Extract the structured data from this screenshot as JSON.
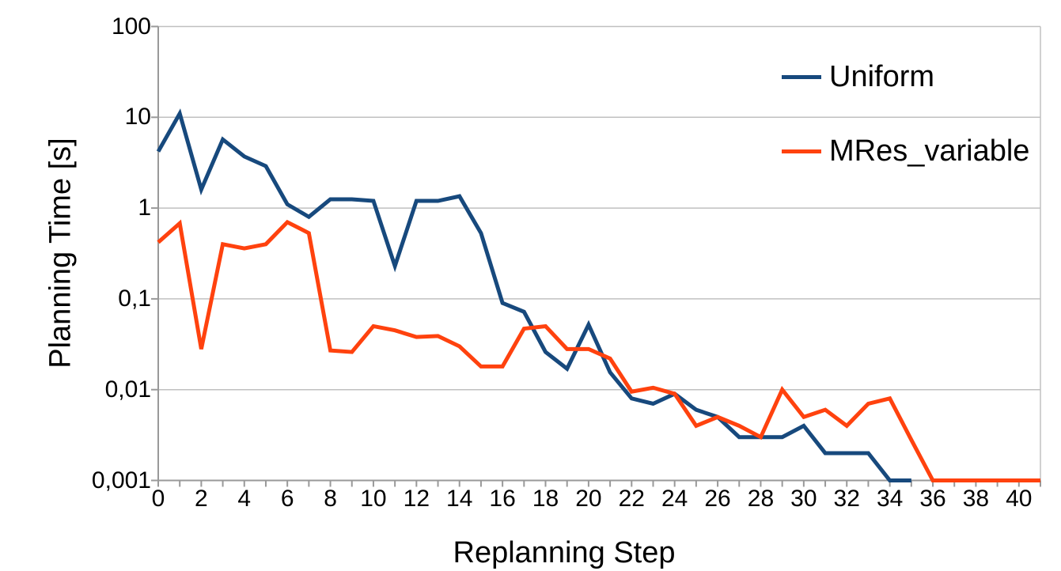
{
  "chart_data": {
    "type": "line",
    "title": "",
    "xlabel": "Replanning Step",
    "ylabel": "Planning Time [s]",
    "y_scale": "log",
    "ylim": [
      0.001,
      100
    ],
    "xlim": [
      0,
      41
    ],
    "grid": "horizontal-decades",
    "legend_position": "top-right-inside",
    "y_tick_values": [
      100,
      10,
      1,
      0.1,
      0.01,
      0.001
    ],
    "y_tick_labels": [
      "100",
      "10",
      "1",
      "0,1",
      "0,01",
      "0,001"
    ],
    "x_tick_values": [
      0,
      2,
      4,
      6,
      8,
      10,
      12,
      14,
      16,
      18,
      20,
      22,
      24,
      26,
      28,
      30,
      32,
      34,
      36,
      38,
      40
    ],
    "x_tick_labels": [
      "0",
      "2",
      "4",
      "6",
      "8",
      "10",
      "12",
      "14",
      "16",
      "18",
      "20",
      "22",
      "24",
      "26",
      "28",
      "30",
      "32",
      "34",
      "36",
      "38",
      "40"
    ],
    "x_minor_tick_every": 1,
    "series": [
      {
        "name": "Uniform",
        "color": "#17497D",
        "x_start": 0,
        "values": [
          4.2,
          11,
          1.6,
          5.7,
          3.7,
          2.9,
          1.1,
          0.8,
          1.25,
          1.25,
          1.2,
          0.23,
          1.2,
          1.2,
          1.35,
          0.53,
          0.09,
          0.072,
          0.026,
          0.017,
          0.052,
          0.0155,
          0.008,
          0.007,
          0.009,
          0.006,
          0.005,
          0.003,
          0.003,
          0.003,
          0.004,
          0.002,
          0.002,
          0.002,
          0.001,
          0.001
        ]
      },
      {
        "name": "MRes_variable",
        "color": "#FF420E",
        "x_start": 0,
        "values": [
          0.42,
          0.68,
          0.028,
          0.4,
          0.36,
          0.4,
          0.7,
          0.53,
          0.027,
          0.026,
          0.05,
          0.045,
          0.038,
          0.039,
          0.03,
          0.018,
          0.018,
          0.047,
          0.05,
          0.028,
          0.028,
          0.022,
          0.0095,
          0.0105,
          0.009,
          0.004,
          0.005,
          0.004,
          0.003,
          0.01,
          0.005,
          0.006,
          0.004,
          0.007,
          0.008,
          0.0028,
          0.001,
          0.001,
          0.001,
          0.001,
          0.001,
          0.001
        ]
      }
    ]
  },
  "colors": {
    "background": "#ffffff",
    "gridline": "#c0c0c0",
    "axis": "#999999",
    "text": "#000000"
  },
  "legend": {
    "items": [
      {
        "label": "Uniform"
      },
      {
        "label": "MRes_variable"
      }
    ]
  }
}
